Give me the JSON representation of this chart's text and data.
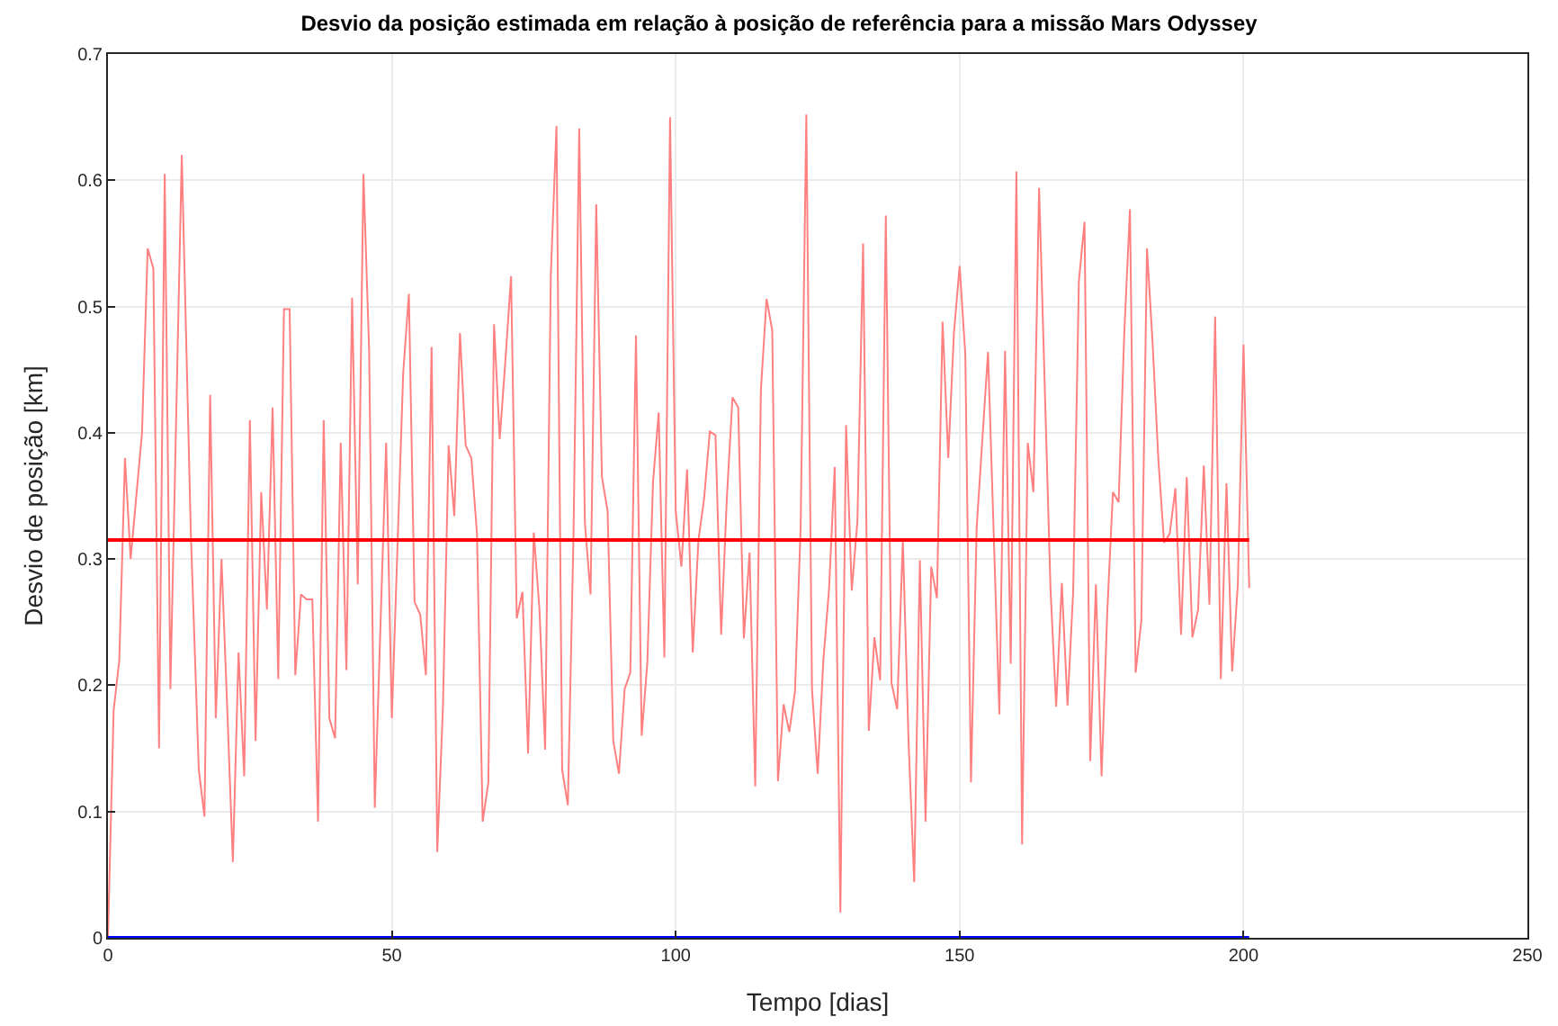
{
  "chart_data": {
    "type": "line",
    "title": "Desvio da posição estimada em relação à posição de referência para a missão Mars Odyssey",
    "xlabel": "Tempo [dias]",
    "ylabel": "Desvio de posição [km]",
    "xlim": [
      0,
      250
    ],
    "xticks": [
      0,
      50,
      100,
      150,
      200,
      250
    ],
    "ylim": [
      0,
      0.7
    ],
    "yticks": [
      0,
      0.1,
      0.2,
      0.3,
      0.4,
      0.5,
      0.6,
      0.7
    ],
    "grid": true,
    "marker": "none",
    "line_style": "solid",
    "series": [
      {
        "color": "#ff8080",
        "x": [
          0,
          1,
          2,
          3,
          4,
          6,
          7,
          8,
          9,
          10,
          11,
          13,
          14.6,
          16,
          17,
          18,
          19,
          20,
          21,
          22,
          23,
          24,
          25,
          26,
          27,
          28,
          29,
          30,
          31,
          32,
          33,
          34,
          35,
          36,
          37,
          38,
          39,
          40,
          41,
          42,
          43,
          44,
          45,
          46,
          47,
          49,
          50,
          52,
          53,
          54,
          55,
          56,
          57,
          58,
          59,
          60,
          61,
          62,
          63,
          64,
          65,
          66,
          67,
          68,
          69,
          70,
          71,
          72,
          73,
          74,
          75,
          76,
          77,
          78,
          79,
          80,
          81,
          82,
          83,
          84,
          85,
          86,
          87,
          88,
          89,
          90,
          91,
          92,
          93,
          94,
          95,
          96,
          97,
          98,
          99,
          100,
          101,
          102,
          103,
          104,
          105,
          106,
          107,
          108,
          109,
          110,
          111,
          112,
          113,
          114,
          115,
          116,
          117,
          118,
          119,
          120,
          121,
          122,
          123,
          124,
          125,
          126,
          127,
          128,
          129,
          130,
          131,
          132,
          133,
          134,
          135,
          136,
          137,
          138,
          139,
          140,
          141,
          142,
          143,
          144,
          145,
          146,
          147,
          148,
          149,
          150,
          151,
          152,
          153,
          155,
          157,
          158,
          159,
          160,
          161,
          162,
          163,
          164,
          166,
          167,
          168,
          169,
          170,
          171,
          172,
          173,
          174,
          175,
          176,
          177,
          178,
          179,
          180,
          181,
          182,
          183,
          184,
          185,
          186,
          187,
          188,
          189,
          190,
          191,
          192,
          193,
          194,
          195,
          196,
          197,
          198,
          199,
          200,
          201
        ],
        "values": [
          0.0,
          0.18,
          0.22,
          0.38,
          0.3,
          0.4,
          0.546,
          0.53,
          0.15,
          0.605,
          0.197,
          0.62,
          0.32,
          0.133,
          0.096,
          0.43,
          0.174,
          0.3,
          0.183,
          0.06,
          0.226,
          0.128,
          0.41,
          0.156,
          0.353,
          0.26,
          0.42,
          0.205,
          0.498,
          0.498,
          0.208,
          0.272,
          0.268,
          0.268,
          0.092,
          0.41,
          0.174,
          0.158,
          0.392,
          0.212,
          0.507,
          0.28,
          0.605,
          0.465,
          0.103,
          0.392,
          0.174,
          0.447,
          0.51,
          0.266,
          0.256,
          0.208,
          0.468,
          0.068,
          0.183,
          0.39,
          0.334,
          0.479,
          0.39,
          0.38,
          0.32,
          0.092,
          0.123,
          0.486,
          0.395,
          0.457,
          0.524,
          0.253,
          0.274,
          0.146,
          0.321,
          0.26,
          0.149,
          0.525,
          0.643,
          0.133,
          0.105,
          0.32,
          0.641,
          0.329,
          0.272,
          0.581,
          0.365,
          0.338,
          0.156,
          0.13,
          0.197,
          0.21,
          0.477,
          0.16,
          0.218,
          0.361,
          0.416,
          0.222,
          0.65,
          0.338,
          0.294,
          0.371,
          0.226,
          0.315,
          0.348,
          0.401,
          0.398,
          0.24,
          0.348,
          0.428,
          0.42,
          0.237,
          0.305,
          0.12,
          0.434,
          0.506,
          0.481,
          0.124,
          0.185,
          0.163,
          0.195,
          0.325,
          0.652,
          0.197,
          0.13,
          0.22,
          0.276,
          0.373,
          0.02,
          0.406,
          0.275,
          0.33,
          0.55,
          0.164,
          0.238,
          0.204,
          0.572,
          0.202,
          0.181,
          0.315,
          0.156,
          0.044,
          0.299,
          0.092,
          0.294,
          0.269,
          0.488,
          0.38,
          0.479,
          0.532,
          0.462,
          0.123,
          0.325,
          0.464,
          0.177,
          0.465,
          0.217,
          0.607,
          0.074,
          0.392,
          0.353,
          0.594,
          0.277,
          0.183,
          0.281,
          0.184,
          0.274,
          0.52,
          0.567,
          0.14,
          0.28,
          0.128,
          0.258,
          0.353,
          0.345,
          0.479,
          0.577,
          0.21,
          0.251,
          0.546,
          0.47,
          0.379,
          0.313,
          0.32,
          0.356,
          0.24,
          0.365,
          0.238,
          0.26,
          0.374,
          0.264,
          0.492,
          0.205,
          0.36,
          0.211,
          0.28,
          0.47,
          0.277
        ]
      },
      {
        "color": "#ff0000",
        "x": [
          0,
          201
        ],
        "values": [
          0.315,
          0.315
        ]
      },
      {
        "color": "#0000ff",
        "x": [
          0,
          201
        ],
        "values": [
          0.0,
          0.0
        ]
      }
    ]
  }
}
